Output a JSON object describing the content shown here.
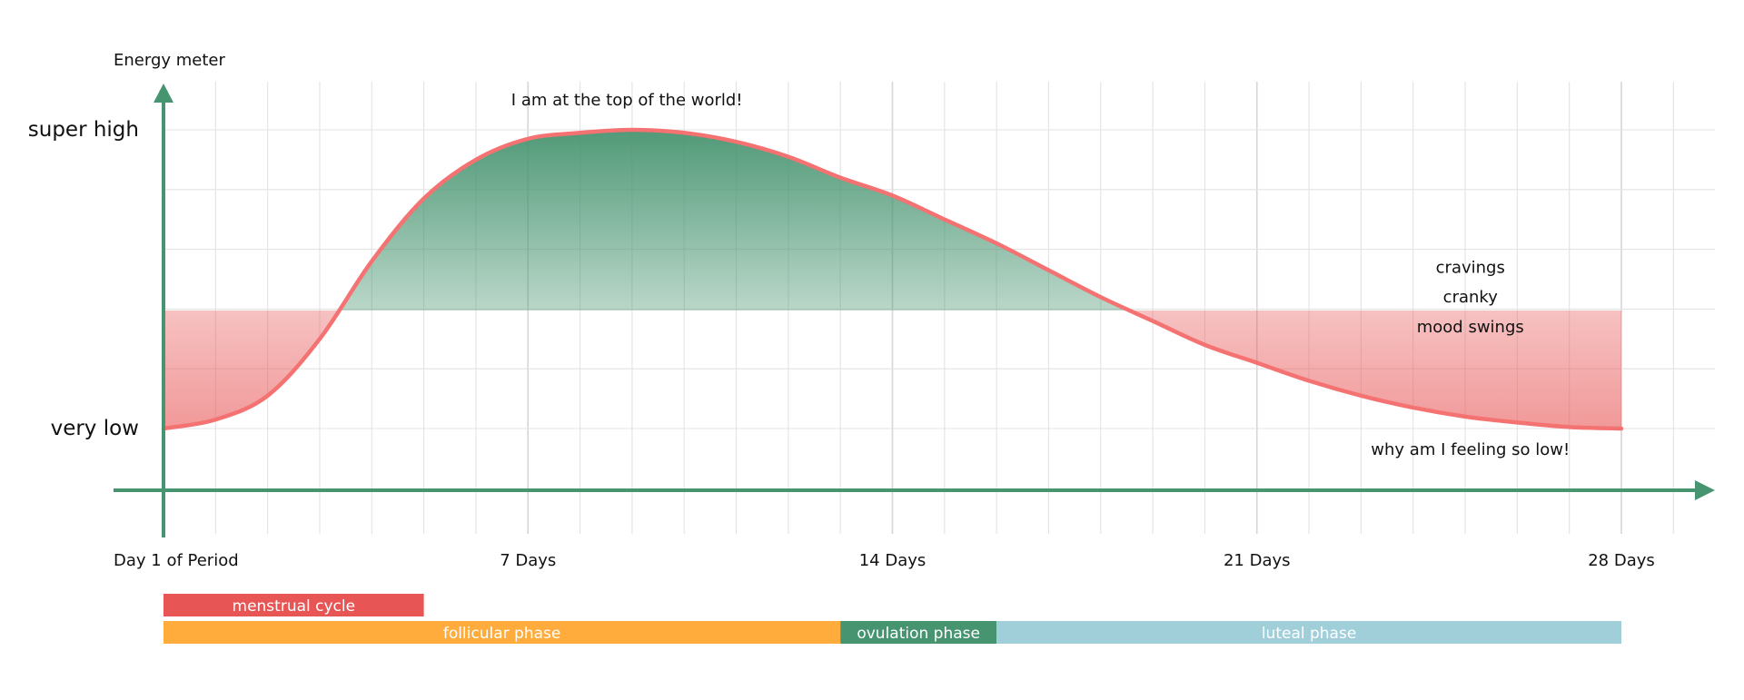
{
  "chart_data": {
    "type": "line",
    "y_axis_title": "Energy meter",
    "y_tick_labels": [
      {
        "label": "super high",
        "value": 100
      },
      {
        "label": "very low",
        "value": 0
      }
    ],
    "x_ticks": [
      {
        "label": "Day 1 of Period",
        "value": 0
      },
      {
        "label": "7 Days",
        "value": 7
      },
      {
        "label": "14 Days",
        "value": 14
      },
      {
        "label": "21 Days",
        "value": 21
      },
      {
        "label": "28 Days",
        "value": 28
      }
    ],
    "xlim": [
      0,
      28
    ],
    "ylim": [
      0,
      100
    ],
    "grid": true,
    "series": [
      {
        "x": [
          0,
          1,
          2,
          3,
          4,
          5,
          6,
          7,
          8,
          9,
          10,
          11,
          12,
          13,
          14,
          15,
          16,
          17,
          18,
          19,
          20,
          21,
          22,
          23,
          24,
          25,
          26,
          27,
          28
        ],
        "y": [
          0,
          3,
          11,
          30,
          56,
          77,
          90,
          97,
          99,
          100,
          99,
          96,
          91,
          84,
          78,
          70,
          62,
          53,
          44,
          36,
          28,
          22,
          16,
          11,
          7,
          4,
          2,
          0.5,
          0
        ]
      }
    ],
    "annotations": [
      {
        "text": "I am at the top of the world!",
        "x": 8.9,
        "y": 110
      },
      {
        "text": "cravings",
        "x": 25.1,
        "y": 54
      },
      {
        "text": "cranky",
        "x": 25.1,
        "y": 44
      },
      {
        "text": "mood swings",
        "x": 25.1,
        "y": 34
      },
      {
        "text": "why am I feeling so low!",
        "x": 25.1,
        "y": -7
      }
    ],
    "phases": [
      {
        "label": "menstrual cycle",
        "start": 0,
        "end": 5,
        "row": 1,
        "color": "#e85555"
      },
      {
        "label": "follicular phase",
        "start": 0,
        "end": 13,
        "row": 2,
        "color": "#ffac3c"
      },
      {
        "label": "ovulation phase",
        "start": 13,
        "end": 16,
        "row": 2,
        "color": "#479470"
      },
      {
        "label": "luteal phase",
        "start": 16,
        "end": 28,
        "row": 2,
        "color": "#a0cfda"
      }
    ]
  },
  "colors": {
    "axis": "#479470",
    "curve": "#f47272",
    "high_fill": "#479470",
    "low_fill": "#e85555",
    "grid": "#e3e3e3",
    "grid_major": "#d6d6d6"
  }
}
